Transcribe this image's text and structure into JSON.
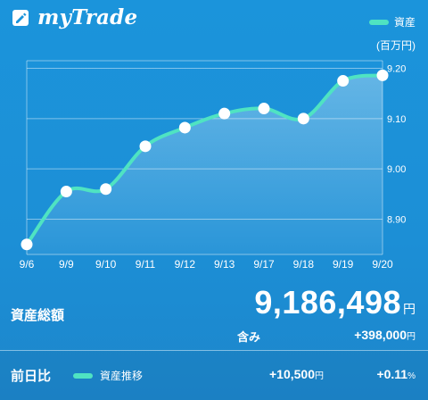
{
  "brand": {
    "name": "myTrade",
    "icon": "pencil-logo-icon"
  },
  "legend": {
    "label": "資産",
    "unit": "(百万円)",
    "line_color": "#4fe3c2"
  },
  "chart_data": {
    "type": "line",
    "title": "",
    "xlabel": "",
    "ylabel": "(百万円)",
    "categories": [
      "9/6",
      "9/9",
      "9/10",
      "9/11",
      "9/12",
      "9/13",
      "9/17",
      "9/18",
      "9/19",
      "9/20"
    ],
    "series": [
      {
        "name": "資産",
        "values": [
          8.85,
          8.955,
          8.96,
          9.045,
          9.082,
          9.11,
          9.12,
          9.1,
          9.175,
          9.186
        ]
      }
    ],
    "yticks": [
      "8.90",
      "9.00",
      "9.10",
      "9.20"
    ],
    "ylim": [
      8.83,
      9.215
    ],
    "grid": true,
    "legend_position": "top-right"
  },
  "summary": {
    "label": "資産総額",
    "total": "9,186,498",
    "total_unit": "円",
    "includes_label": "含み",
    "gain": "+398,000",
    "gain_unit": "円"
  },
  "footer": {
    "label": "前日比",
    "legend_label": "資産推移",
    "amount": "+10,500",
    "amount_unit": "円",
    "percent": "+0.11",
    "percent_unit": "%"
  }
}
